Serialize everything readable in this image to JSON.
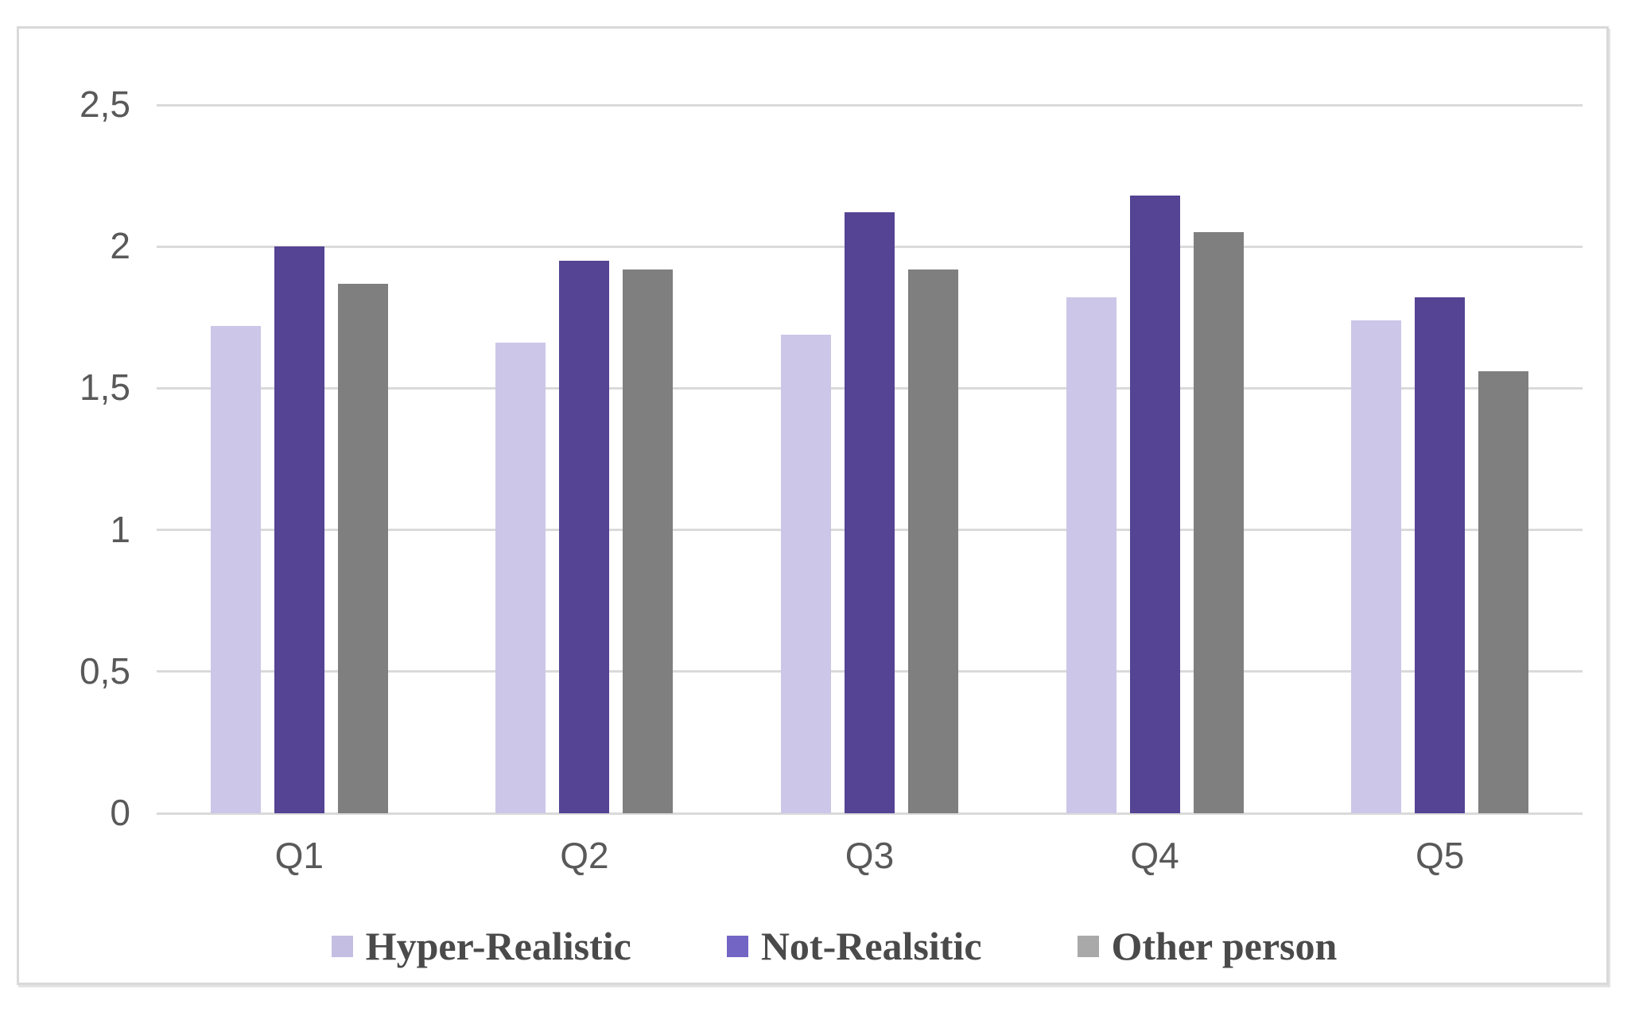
{
  "chart_data": {
    "type": "bar",
    "title": "",
    "xlabel": "",
    "ylabel": "",
    "categories": [
      "Q1",
      "Q2",
      "Q3",
      "Q4",
      "Q5"
    ],
    "series": [
      {
        "name": "Hyper-Realistic",
        "color": "#ccc6e8",
        "legend_swatch_color": "#c4bee3",
        "values": [
          1.72,
          1.66,
          1.69,
          1.82,
          1.74
        ]
      },
      {
        "name": "Not-Realsitic",
        "color": "#554394",
        "legend_swatch_color": "#7265c4",
        "values": [
          2.0,
          1.95,
          2.12,
          2.18,
          1.82
        ]
      },
      {
        "name": "Other person",
        "color": "#7f7f7f",
        "legend_swatch_color": "#a9a9a9",
        "values": [
          1.87,
          1.92,
          1.92,
          2.05,
          1.56
        ]
      }
    ],
    "ylim": [
      0,
      2.5
    ],
    "yticks": [
      {
        "value": 0,
        "label": "0"
      },
      {
        "value": 0.5,
        "label": "0,5"
      },
      {
        "value": 1,
        "label": "1"
      },
      {
        "value": 1.5,
        "label": "1,5"
      },
      {
        "value": 2,
        "label": "2"
      },
      {
        "value": 2.5,
        "label": "2,5"
      }
    ],
    "decimal_separator": ",",
    "grid": true,
    "legend_position": "bottom"
  },
  "style_colors": {
    "gridline": "#dadada",
    "tick_label_text": "#595959",
    "legend_text": "#4a4a4a",
    "frame_border": "#d9d9d9",
    "background": "#ffffff"
  }
}
